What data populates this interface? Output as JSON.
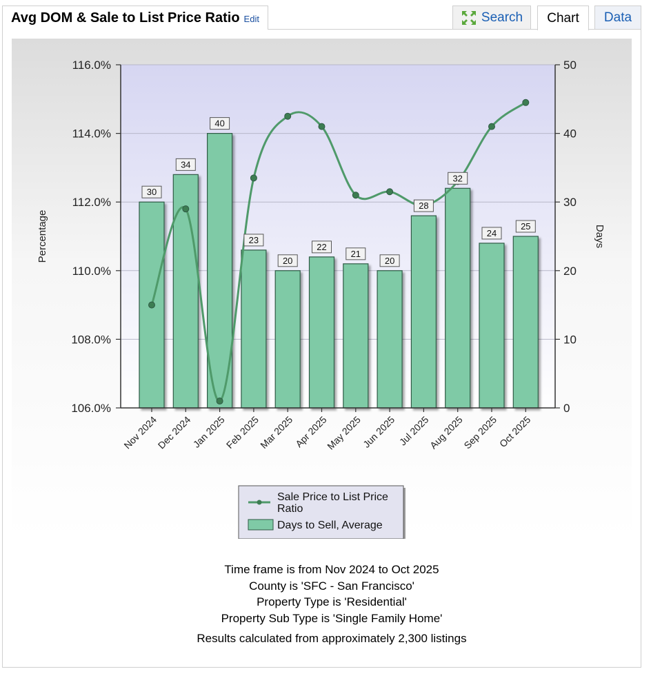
{
  "header": {
    "title": "Avg DOM & Sale to List Price Ratio",
    "edit_label": "Edit"
  },
  "tabs": {
    "search": "Search",
    "chart": "Chart",
    "data": "Data"
  },
  "icons": {
    "search_tab": "expand-arrows-icon"
  },
  "colors": {
    "bar_fill": "#7fcaa6",
    "bar_stroke": "#2f5a45",
    "line": "#4f9a6a",
    "plot_bg_top": "#d6d6f2",
    "plot_bg_bottom": "#ffffff"
  },
  "chart_data": {
    "type": "bar+line",
    "categories": [
      "Nov 2024",
      "Dec 2024",
      "Jan 2025",
      "Feb 2025",
      "Mar 2025",
      "Apr 2025",
      "May 2025",
      "Jun 2025",
      "Jul 2025",
      "Aug 2025",
      "Sep 2025",
      "Oct 2025"
    ],
    "series": [
      {
        "name": "Days to Sell, Average",
        "type": "bar",
        "axis": "right",
        "values": [
          30,
          34,
          40,
          23,
          20,
          22,
          21,
          20,
          28,
          32,
          24,
          25
        ],
        "labels": [
          "30",
          "34",
          "40",
          "23",
          "20",
          "22",
          "21",
          "20",
          "28",
          "32",
          "24",
          "25"
        ]
      },
      {
        "name": "Sale Price to List Price Ratio",
        "type": "line",
        "axis": "left",
        "values": [
          109.0,
          111.8,
          106.2,
          112.7,
          114.5,
          114.2,
          112.2,
          112.3,
          111.9,
          112.6,
          114.2,
          114.9
        ]
      }
    ],
    "left_axis": {
      "label": "Percentage",
      "ylim": [
        106,
        116
      ],
      "ticks": [
        "106.0%",
        "108.0%",
        "110.0%",
        "112.0%",
        "114.0%",
        "116.0%"
      ],
      "tick_values": [
        106,
        108,
        110,
        112,
        114,
        116
      ]
    },
    "right_axis": {
      "label": "Days",
      "ylim": [
        0,
        50
      ],
      "ticks": [
        "0",
        "10",
        "20",
        "30",
        "40",
        "50"
      ],
      "tick_values": [
        0,
        10,
        20,
        30,
        40,
        50
      ]
    },
    "legend": {
      "line_label_1": "Sale Price to List Price",
      "line_label_2": "Ratio",
      "bar_label": "Days to Sell, Average",
      "placement": "bottom"
    },
    "grid": true
  },
  "info": {
    "line1": "Time frame is from Nov 2024 to Oct 2025",
    "line2": "County is 'SFC - San Francisco'",
    "line3": "Property Type is 'Residential'",
    "line4": "Property Sub Type is 'Single Family Home'",
    "line5": "Results calculated from approximately 2,300 listings"
  }
}
